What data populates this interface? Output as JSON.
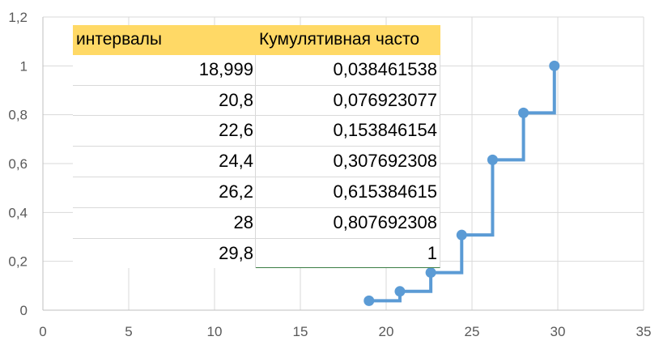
{
  "table": {
    "headers": [
      "интервалы",
      "Кумулятивная часто"
    ],
    "rows": [
      [
        "18,999",
        "0,038461538"
      ],
      [
        "20,8",
        "0,076923077"
      ],
      [
        "22,6",
        "0,153846154"
      ],
      [
        "24,4",
        "0,307692308"
      ],
      [
        "26,2",
        "0,615384615"
      ],
      [
        "28",
        "0,807692308"
      ],
      [
        "29,8",
        "1"
      ]
    ]
  },
  "chart_data": {
    "type": "line",
    "step": true,
    "x": [
      18.999,
      20.8,
      22.6,
      24.4,
      26.2,
      28,
      29.8
    ],
    "y": [
      0.038461538,
      0.076923077,
      0.153846154,
      0.307692308,
      0.615384615,
      0.807692308,
      1
    ],
    "xlim": [
      0,
      35
    ],
    "ylim": [
      0,
      1.2
    ],
    "xticks": [
      "0",
      "5",
      "10",
      "15",
      "20",
      "25",
      "30",
      "35"
    ],
    "yticks": [
      "0",
      "0,2",
      "0,4",
      "0,6",
      "0,8",
      "1",
      "1,2"
    ],
    "grid": true,
    "line_color": "#5b9bd5"
  }
}
